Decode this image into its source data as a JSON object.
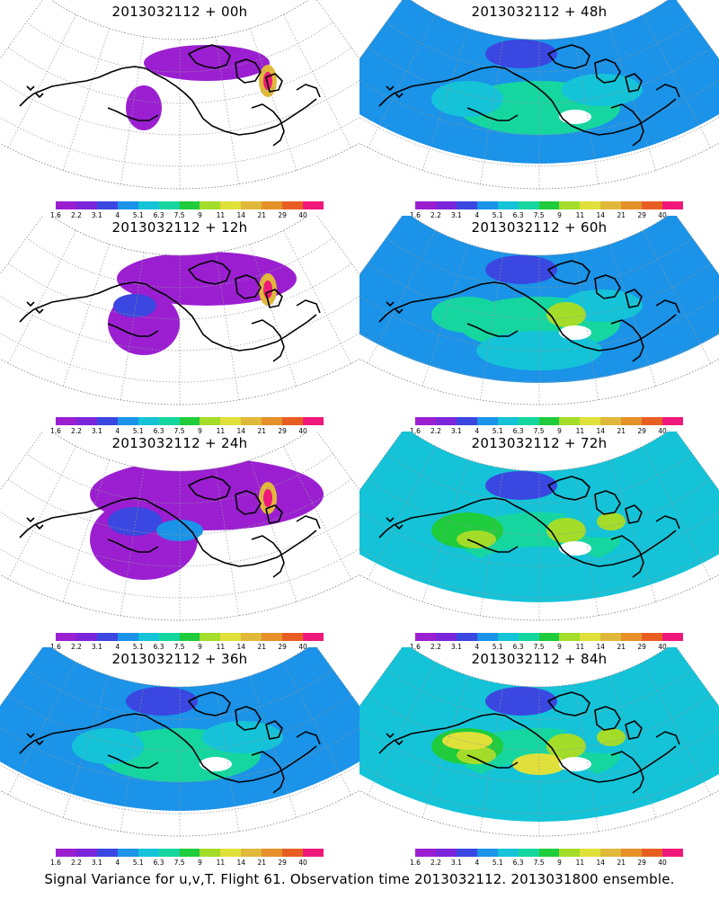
{
  "panels": [
    {
      "title": "2013032112 + 00h",
      "level": 0
    },
    {
      "title": "2013032112 + 48h",
      "level": 3
    },
    {
      "title": "2013032112 + 12h",
      "level": 1
    },
    {
      "title": "2013032112 + 60h",
      "level": 4
    },
    {
      "title": "2013032112 + 24h",
      "level": 2
    },
    {
      "title": "2013032112 + 72h",
      "level": 5
    },
    {
      "title": "2013032112 + 36h",
      "level": 3
    },
    {
      "title": "2013032112 + 84h",
      "level": 6
    }
  ],
  "colorbar": {
    "colors": [
      "#9b1fd1",
      "#7a25d9",
      "#3a47e0",
      "#1a93e8",
      "#14c3d8",
      "#16d6a0",
      "#1ecc3c",
      "#a4dc2a",
      "#e0e03a",
      "#e0b83a",
      "#e6902a",
      "#e85e22",
      "#f0187a"
    ],
    "labels": [
      "1.6",
      "2.2",
      "3.1",
      "4",
      "5.1",
      "6.3",
      "7.5",
      "9",
      "11",
      "14",
      "21",
      "29",
      "40"
    ]
  },
  "caption": "Signal Variance for u,v,T. Flight 61. Observation time 2013032112. 2013031800 ensemble."
}
